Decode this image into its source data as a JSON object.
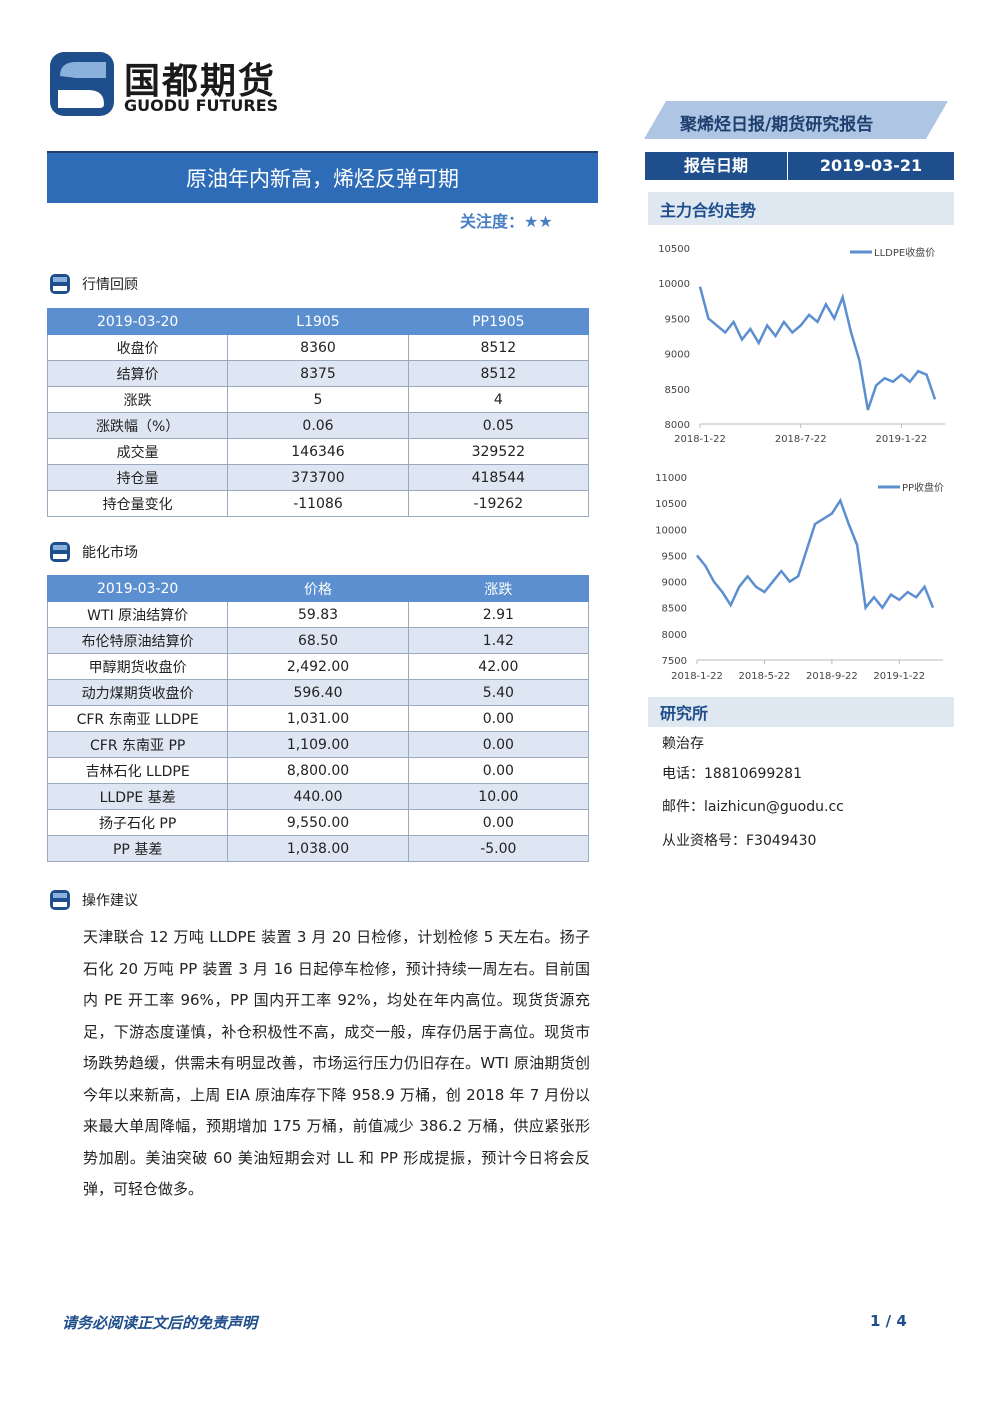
{
  "header": {
    "logo_cn": "国都期货",
    "logo_en": "GUODU FUTURES",
    "report_type": "聚烯烃日报/期货研究报告",
    "title": "原油年内新高，烯烃反弹可期",
    "attention_label": "关注度：",
    "attention": "★★",
    "date_label": "报告日期",
    "date": "2019-03-21"
  },
  "market_review": {
    "heading": "行情回顾",
    "table": {
      "header": [
        "2019-03-20",
        "L1905",
        "PP1905"
      ],
      "rows": [
        [
          "收盘价",
          "8360",
          "8512"
        ],
        [
          "结算价",
          "8375",
          "8512"
        ],
        [
          "涨跌",
          "5",
          "4"
        ],
        [
          "涨跌幅（%）",
          "0.06",
          "0.05"
        ],
        [
          "成交量",
          "146346",
          "329522"
        ],
        [
          "持仓量",
          "373700",
          "418544"
        ],
        [
          "持仓量变化",
          "-11086",
          "-19262"
        ]
      ]
    }
  },
  "energy_market": {
    "heading": "能化市场",
    "table": {
      "header": [
        "2019-03-20",
        "价格",
        "涨跌"
      ],
      "rows": [
        [
          "WTI 原油结算价",
          "59.83",
          "2.91"
        ],
        [
          "布伦特原油结算价",
          "68.50",
          "1.42"
        ],
        [
          "甲醇期货收盘价",
          "2,492.00",
          "42.00"
        ],
        [
          "动力煤期货收盘价",
          "596.40",
          "5.40"
        ],
        [
          "CFR 东南亚 LLDPE",
          "1,031.00",
          "0.00"
        ],
        [
          "CFR 东南亚 PP",
          "1,109.00",
          "0.00"
        ],
        [
          "吉林石化 LLDPE",
          "8,800.00",
          "0.00"
        ],
        [
          "LLDPE 基差",
          "440.00",
          "10.00"
        ],
        [
          "扬子石化 PP",
          "9,550.00",
          "0.00"
        ],
        [
          "PP 基差",
          "1,038.00",
          "-5.00"
        ]
      ]
    }
  },
  "advice": {
    "heading": "操作建议",
    "text": "天津联合 12 万吨 LLDPE 装置 3 月 20 日检修，计划检修 5 天左右。扬子石化 20 万吨 PP 装置 3 月 16 日起停车检修，预计持续一周左右。目前国内 PE 开工率 96%，PP 国内开工率 92%，均处在年内高位。现货货源充足，下游态度谨慎，补仓积极性不高，成交一般，库存仍居于高位。现货市场跌势趋缓，供需未有明显改善，市场运行压力仍旧存在。WTI 原油期货创今年以来新高，上周 EIA 原油库存下降 958.9 万桶，创 2018 年 7 月份以来最大单周降幅，预期增加 175 万桶，前值减少 386.2 万桶，供应紧张形势加剧。美油突破 60 美油短期会对 LL 和 PP 形成提振，预计今日将会反弹，可轻仓做多。"
  },
  "trend_heading": "主力合约走势",
  "chart_data": [
    {
      "type": "line",
      "categories": [
        "2018-1-22",
        null,
        null,
        null,
        null,
        null,
        null,
        null,
        null,
        null,
        null,
        null,
        "2018-7-22",
        null,
        null,
        null,
        null,
        null,
        null,
        null,
        null,
        null,
        null,
        null,
        "2019-1-22",
        null,
        null,
        null,
        null
      ],
      "series": [
        {
          "name": "LLDPE收盘价",
          "color": "#5b8fd0",
          "values": [
            9950,
            9500,
            9400,
            9300,
            9450,
            9200,
            9350,
            9150,
            9400,
            9250,
            9450,
            9300,
            9400,
            9550,
            9450,
            9700,
            9500,
            9800,
            9300,
            8900,
            8200,
            8550,
            8650,
            8600,
            8700,
            8600,
            8750,
            8700,
            8350
          ]
        }
      ],
      "ylim": [
        8000,
        10500
      ],
      "yticks": [
        8000,
        8500,
        9000,
        9500,
        10000,
        10500
      ],
      "grid": false,
      "legend": "upper right"
    },
    {
      "type": "line",
      "categories": [
        "2018-1-22",
        null,
        null,
        null,
        null,
        null,
        null,
        null,
        "2018-5-22",
        null,
        null,
        null,
        null,
        null,
        null,
        null,
        "2018-9-22",
        null,
        null,
        null,
        null,
        null,
        null,
        null,
        "2019-1-22",
        null,
        null,
        null,
        null
      ],
      "series": [
        {
          "name": "PP收盘价",
          "color": "#5b8fd0",
          "values": [
            9500,
            9300,
            9000,
            8800,
            8550,
            8900,
            9100,
            8900,
            8800,
            9000,
            9200,
            9000,
            9100,
            9600,
            10100,
            10200,
            10300,
            10550,
            10100,
            9700,
            8500,
            8700,
            8500,
            8750,
            8650,
            8800,
            8700,
            8900,
            8500
          ]
        }
      ],
      "ylim": [
        7500,
        11000
      ],
      "yticks": [
        7500,
        8000,
        8500,
        9000,
        9500,
        10000,
        10500,
        11000
      ],
      "grid": false,
      "legend": "upper right"
    }
  ],
  "research": {
    "heading": "研究所",
    "analyst": "赖治存",
    "phone": "电话：18810699281",
    "email": "邮件：laizhicun@guodu.cc",
    "license": "从业资格号：F3049430"
  },
  "footer": {
    "disclaimer": "请务必阅读正文后的免责声明",
    "page": "1 / 4"
  }
}
